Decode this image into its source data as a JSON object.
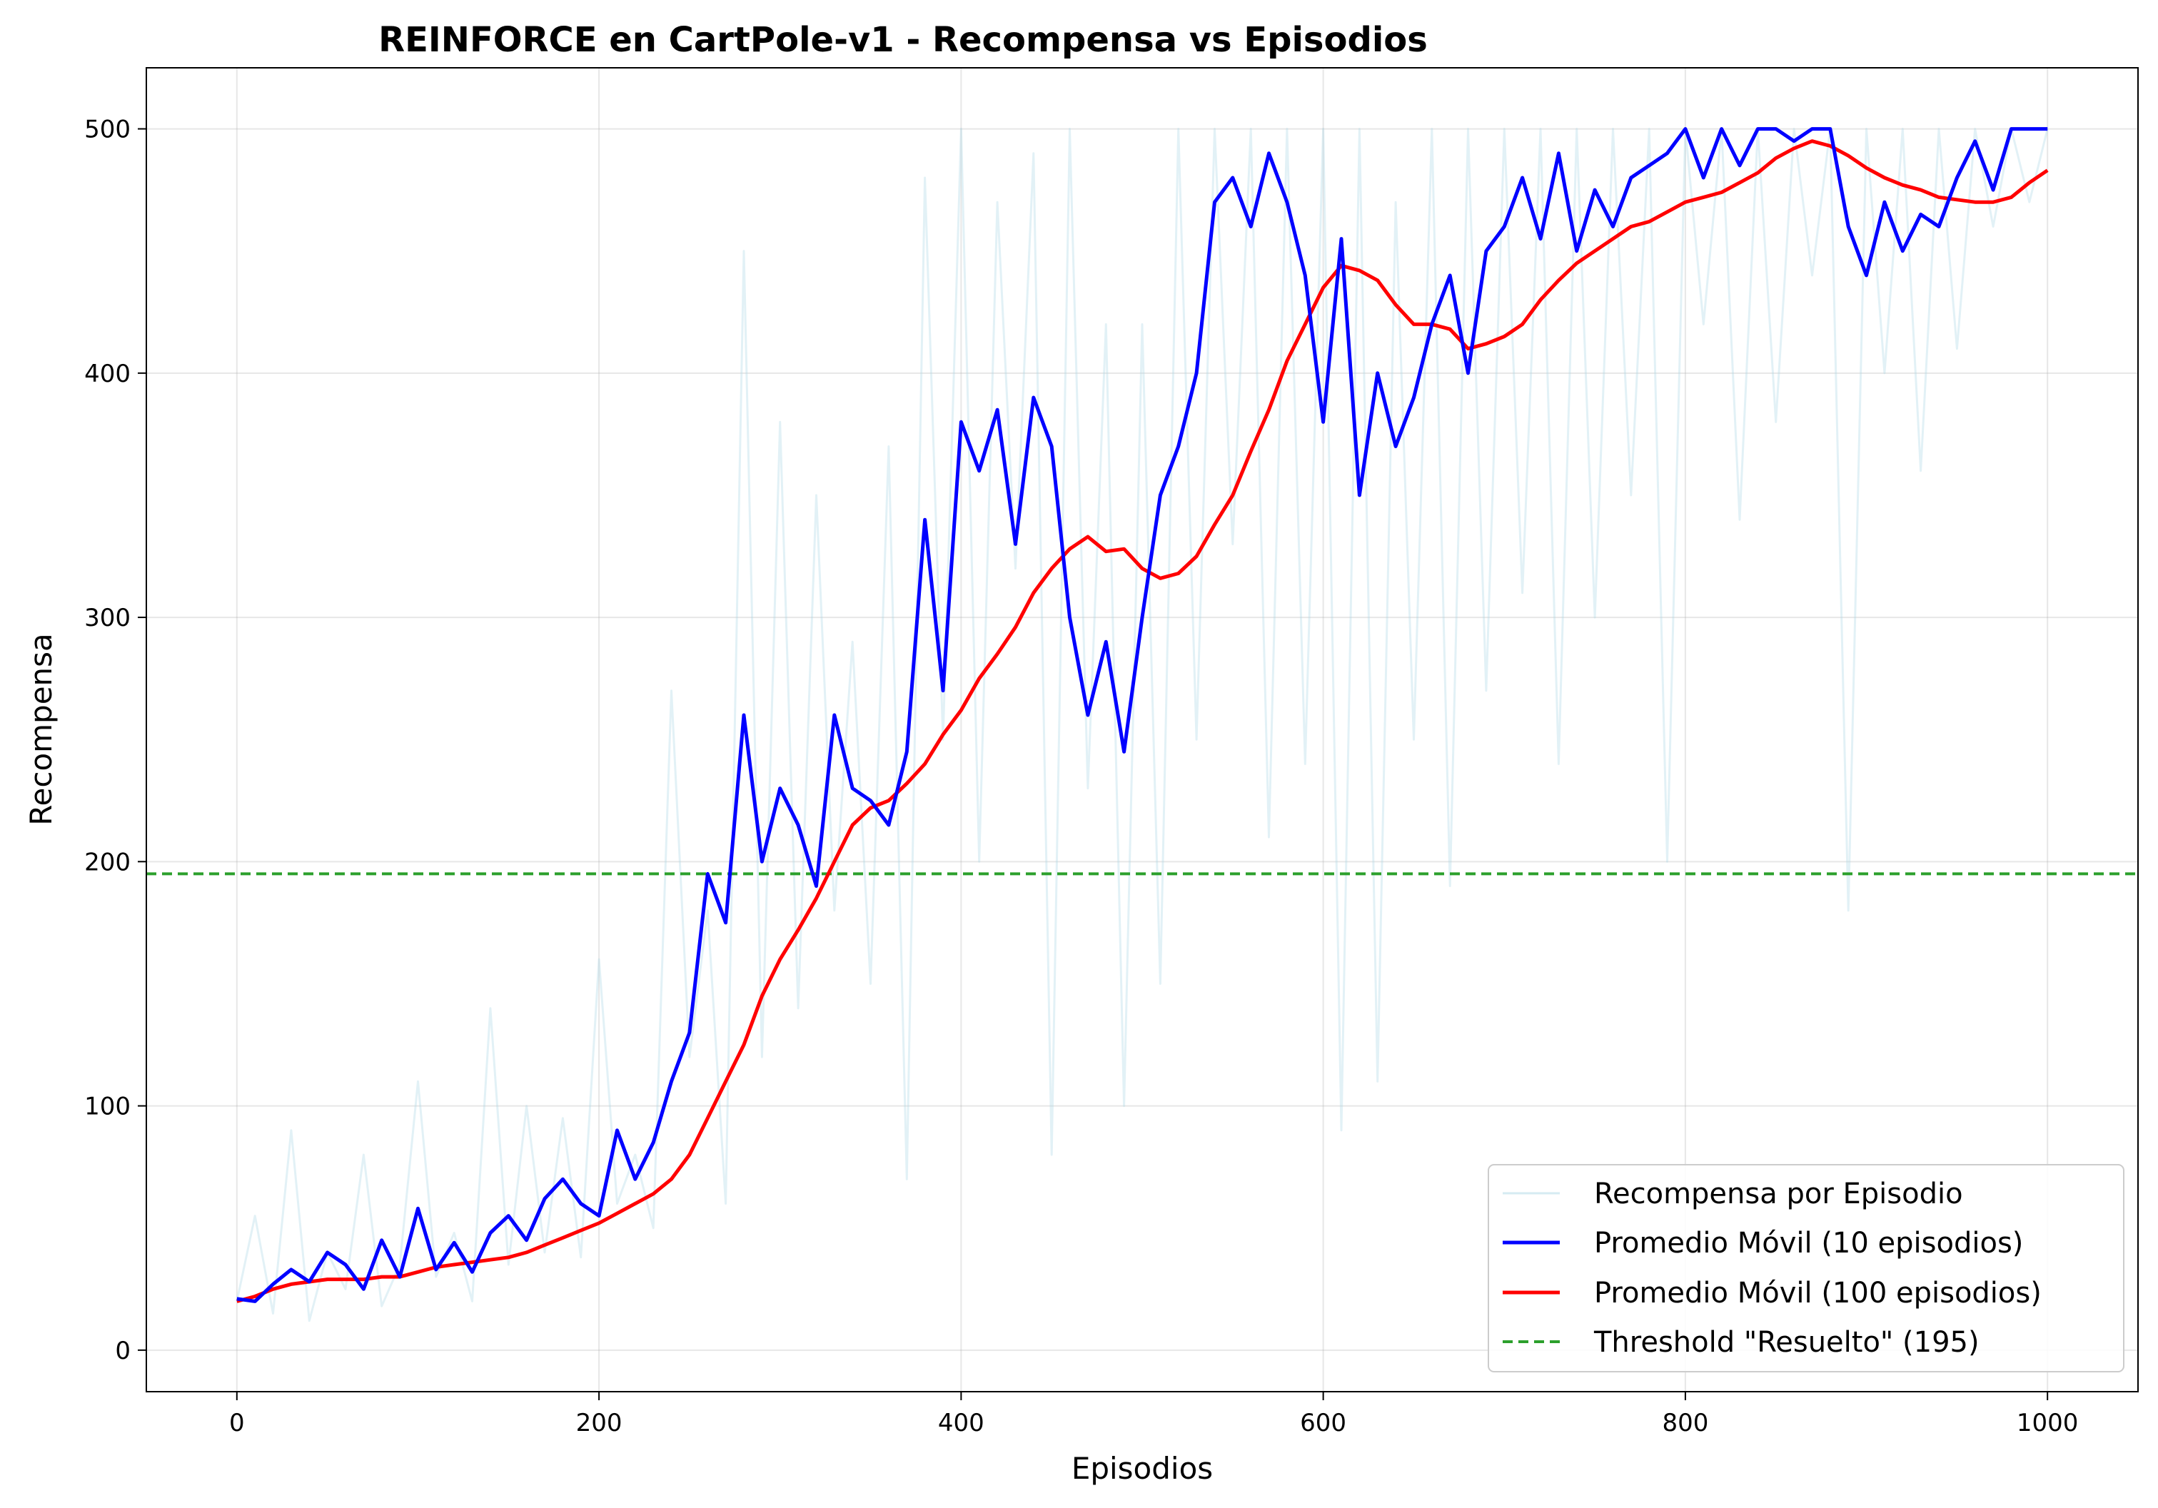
{
  "chart_data": {
    "type": "line",
    "title": "REINFORCE en CartPole-v1 - Recompensa vs Episodios",
    "xlabel": "Episodios",
    "ylabel": "Recompensa",
    "xlim": [
      -50,
      1050
    ],
    "ylim": [
      -17,
      525
    ],
    "xticks": [
      0,
      200,
      400,
      600,
      800,
      1000
    ],
    "yticks": [
      0,
      100,
      200,
      300,
      400,
      500
    ],
    "grid": true,
    "legend_position": "lower right",
    "colors": {
      "raw": "#add8e6",
      "ma10": "#0000ff",
      "ma100": "#ff0000",
      "threshold": "#2ca02c"
    },
    "series": [
      {
        "name": "Recompensa por Episodio",
        "style": "thin light-blue line, noisy per-episode reward",
        "x": [
          0,
          10,
          20,
          30,
          40,
          50,
          60,
          70,
          80,
          90,
          100,
          110,
          120,
          130,
          140,
          150,
          160,
          170,
          180,
          190,
          200,
          210,
          220,
          230,
          240,
          250,
          260,
          270,
          280,
          290,
          300,
          310,
          320,
          330,
          340,
          350,
          360,
          370,
          380,
          390,
          400,
          410,
          420,
          430,
          440,
          450,
          460,
          470,
          480,
          490,
          500,
          510,
          520,
          530,
          540,
          550,
          560,
          570,
          580,
          590,
          600,
          610,
          620,
          630,
          640,
          650,
          660,
          670,
          680,
          690,
          700,
          710,
          720,
          730,
          740,
          750,
          760,
          770,
          780,
          790,
          800,
          810,
          820,
          830,
          840,
          850,
          860,
          870,
          880,
          890,
          900,
          910,
          920,
          930,
          940,
          950,
          960,
          970,
          980,
          990,
          1000
        ],
        "y": [
          20,
          55,
          15,
          90,
          12,
          40,
          25,
          80,
          18,
          35,
          110,
          30,
          48,
          20,
          140,
          35,
          100,
          40,
          95,
          38,
          160,
          60,
          80,
          50,
          270,
          120,
          180,
          60,
          450,
          120,
          380,
          140,
          350,
          180,
          290,
          150,
          370,
          70,
          480,
          250,
          500,
          200,
          470,
          320,
          490,
          80,
          500,
          230,
          420,
          100,
          420,
          150,
          500,
          250,
          500,
          330,
          500,
          210,
          500,
          240,
          500,
          90,
          500,
          110,
          470,
          250,
          500,
          190,
          500,
          270,
          500,
          310,
          500,
          240,
          500,
          300,
          500,
          350,
          500,
          200,
          500,
          420,
          500,
          340,
          500,
          380,
          500,
          440,
          500,
          180,
          500,
          400,
          500,
          360,
          500,
          410,
          500,
          460,
          500,
          470,
          500
        ]
      },
      {
        "name": "Promedio Móvil (10 episodios)",
        "x": [
          0,
          10,
          20,
          30,
          40,
          50,
          60,
          70,
          80,
          90,
          100,
          110,
          120,
          130,
          140,
          150,
          160,
          170,
          180,
          190,
          200,
          210,
          220,
          230,
          240,
          250,
          260,
          270,
          280,
          290,
          300,
          310,
          320,
          330,
          340,
          350,
          360,
          370,
          380,
          390,
          400,
          410,
          420,
          430,
          440,
          450,
          460,
          470,
          480,
          490,
          500,
          510,
          520,
          530,
          540,
          550,
          560,
          570,
          580,
          590,
          600,
          610,
          620,
          630,
          640,
          650,
          660,
          670,
          680,
          690,
          700,
          710,
          720,
          730,
          740,
          750,
          760,
          770,
          780,
          790,
          800,
          810,
          820,
          830,
          840,
          850,
          860,
          870,
          880,
          890,
          900,
          910,
          920,
          930,
          940,
          950,
          960,
          970,
          980,
          990,
          1000
        ],
        "y": [
          21,
          20,
          27,
          33,
          28,
          40,
          35,
          25,
          45,
          30,
          58,
          33,
          44,
          32,
          48,
          55,
          45,
          62,
          70,
          60,
          55,
          90,
          70,
          85,
          110,
          130,
          195,
          175,
          260,
          200,
          230,
          215,
          190,
          260,
          230,
          225,
          215,
          245,
          340,
          270,
          380,
          360,
          385,
          330,
          390,
          370,
          300,
          260,
          290,
          245,
          300,
          350,
          370,
          400,
          470,
          480,
          460,
          490,
          470,
          440,
          380,
          455,
          350,
          400,
          370,
          390,
          420,
          440,
          400,
          450,
          460,
          480,
          455,
          490,
          450,
          475,
          460,
          480,
          485,
          490,
          500,
          480,
          500,
          485,
          500,
          500,
          495,
          500,
          500,
          460,
          440,
          470,
          450,
          465,
          460,
          480,
          495,
          475,
          500,
          500,
          500
        ]
      },
      {
        "name": "Promedio Móvil (100 episodios)",
        "x": [
          0,
          10,
          20,
          30,
          40,
          50,
          60,
          70,
          80,
          90,
          100,
          110,
          120,
          130,
          140,
          150,
          160,
          170,
          180,
          190,
          200,
          210,
          220,
          230,
          240,
          250,
          260,
          270,
          280,
          290,
          300,
          310,
          320,
          330,
          340,
          350,
          360,
          370,
          380,
          390,
          400,
          410,
          420,
          430,
          440,
          450,
          460,
          470,
          480,
          490,
          500,
          510,
          520,
          530,
          540,
          550,
          560,
          570,
          580,
          590,
          600,
          610,
          620,
          630,
          640,
          650,
          660,
          670,
          680,
          690,
          700,
          710,
          720,
          730,
          740,
          750,
          760,
          770,
          780,
          790,
          800,
          810,
          820,
          830,
          840,
          850,
          860,
          870,
          880,
          890,
          900,
          910,
          920,
          930,
          940,
          950,
          960,
          970,
          980,
          990,
          1000
        ],
        "y": [
          20,
          22,
          25,
          27,
          28,
          29,
          29,
          29,
          30,
          30,
          32,
          34,
          35,
          36,
          37,
          38,
          40,
          43,
          46,
          49,
          52,
          56,
          60,
          64,
          70,
          80,
          95,
          110,
          125,
          145,
          160,
          172,
          185,
          200,
          215,
          222,
          225,
          232,
          240,
          252,
          262,
          275,
          285,
          296,
          310,
          320,
          328,
          333,
          327,
          328,
          320,
          316,
          318,
          325,
          338,
          350,
          368,
          385,
          405,
          420,
          435,
          444,
          442,
          438,
          428,
          420,
          420,
          418,
          410,
          412,
          415,
          420,
          430,
          438,
          445,
          450,
          455,
          460,
          462,
          466,
          470,
          472,
          474,
          478,
          482,
          488,
          492,
          495,
          493,
          489,
          484,
          480,
          477,
          475,
          472,
          471,
          470,
          470,
          472,
          478,
          483
        ]
      }
    ],
    "threshold": {
      "name": "Threshold \"Resuelto\" (195)",
      "value": 195
    }
  }
}
